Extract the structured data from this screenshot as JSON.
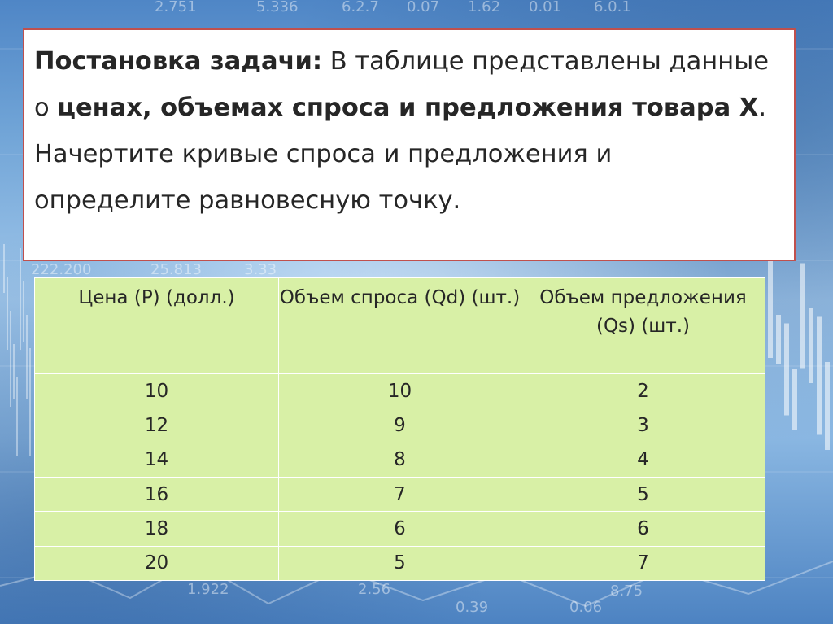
{
  "task": {
    "parts": [
      {
        "text": "Постановка задачи:",
        "bold": true
      },
      {
        "text": " В таблице представлены данные о ",
        "bold": false
      },
      {
        "text": "ценах, объемах спроса и предложения товара Х",
        "bold": true
      },
      {
        "text": ". Начертите кривые спроса и предложения и определите равновесную точку.",
        "bold": false
      }
    ]
  },
  "table": {
    "headers": [
      "Цена (P) (долл.)",
      "Объем спроса (Qd) (шт.)",
      "Объем предложения (Qs) (шт.)"
    ],
    "rows": [
      [
        "10",
        "10",
        "2"
      ],
      [
        "12",
        "9",
        "3"
      ],
      [
        "14",
        "8",
        "4"
      ],
      [
        "16",
        "7",
        "5"
      ],
      [
        "18",
        "6",
        "6"
      ],
      [
        "20",
        "5",
        "7"
      ]
    ]
  },
  "background": {
    "numbers": [
      "2.751",
      "5.336",
      "6.2.7",
      "0.07",
      "1.62",
      "0.01",
      "6.0.1",
      "222.200",
      "25.813",
      "3.33",
      "1.922",
      "2.56",
      "0.39",
      "0.06",
      "8.75"
    ]
  },
  "colors": {
    "box_border": "#c0504d",
    "table_fill": "#d8f0a6",
    "table_grid": "#ffffff"
  }
}
